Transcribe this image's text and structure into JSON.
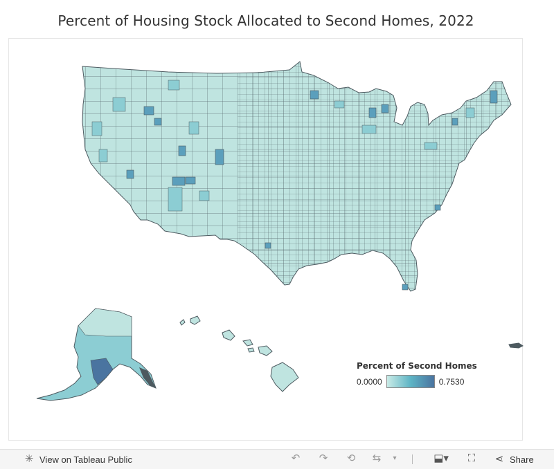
{
  "title": "Percent of Housing Stock Allocated to Second Homes, 2022",
  "legend": {
    "title": "Percent of Second Homes",
    "min_label": "0.0000",
    "max_label": "0.7530",
    "min_value": 0.0,
    "max_value": 0.753,
    "color_low": "#c9ebe6",
    "color_mid": "#5db4c5",
    "color_high": "#4a74a0"
  },
  "map": {
    "border_color": "#4d5a60",
    "regions": [
      "contiguous-us",
      "alaska",
      "hawaii",
      "puerto-rico"
    ]
  },
  "toolbar": {
    "view_label": "View on Tableau Public",
    "share_label": "Share",
    "icons": [
      "tableau-logo-icon",
      "undo-icon",
      "redo-icon",
      "revert-icon",
      "refresh-icon",
      "pause-dropdown-icon",
      "download-icon",
      "fullscreen-icon",
      "share-icon"
    ]
  }
}
